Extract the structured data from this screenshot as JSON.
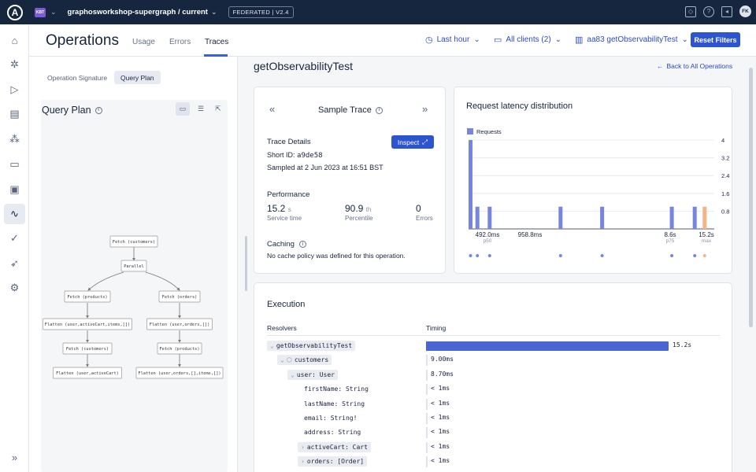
{
  "topbar": {
    "org_badge": "KBT",
    "graph_name": "graphosworkshop-supergraph / current",
    "federation": "FEDERATED | V2.4",
    "avatar_initials": "FK"
  },
  "header": {
    "title": "Operations",
    "tabs": [
      "Usage",
      "Errors",
      "Traces"
    ],
    "active_tab": "Traces",
    "filters": {
      "time": "Last hour",
      "clients": "All clients (2)",
      "operation": "aa83 getObservabilityTest"
    },
    "reset_label": "Reset Filters"
  },
  "left_panel": {
    "tabs": [
      "Operation Signature",
      "Query Plan"
    ],
    "active_tab": "Query Plan",
    "query_plan_title": "Query Plan",
    "nodes": [
      "Fetch (customers)",
      "Parallel",
      "Fetch (products)",
      "Fetch (orders)",
      "Flatten (user,activeCart,items,[])",
      "Flatten (user,orders,[])",
      "Fetch (customers)",
      "Fetch (products)",
      "Flatten (user,activeCart)",
      "Flatten (user,orders,[],items,[])"
    ]
  },
  "main": {
    "operation_name": "getObservabilityTest",
    "back_link": "Back to All Operations",
    "sample_trace": {
      "title": "Sample Trace",
      "details_title": "Trace Details",
      "short_id_label": "Short ID:",
      "short_id": "a9de58",
      "sampled_at": "Sampled at 2 Jun 2023 at 16:51 BST",
      "inspect_label": "Inspect",
      "performance_title": "Performance",
      "service_time": "15.2",
      "service_time_unit": "s",
      "service_time_label": "Service time",
      "percentile": "90.9",
      "percentile_suffix": "th",
      "percentile_label": "Percentile",
      "errors": "0",
      "errors_label": "Errors",
      "caching_title": "Caching",
      "caching_text": "No cache policy was defined for this operation."
    },
    "latency": {
      "title": "Request latency distribution"
    },
    "execution": {
      "title": "Execution",
      "col_resolvers": "Resolvers",
      "col_timing": "Timing",
      "rows": [
        {
          "name": "getObservabilityTest",
          "timing": "15.2s",
          "field": true,
          "chev": "⌄",
          "indent": 0,
          "fraction": 1.0
        },
        {
          "name": "customers",
          "timing": "9.00ms",
          "field": true,
          "chev": "⌄",
          "icon": "⬡",
          "indent": 1,
          "fraction": 0.0
        },
        {
          "name": "user: User",
          "timing": "8.70ms",
          "field": true,
          "chev": "⌄",
          "indent": 2,
          "fraction": 0.0
        },
        {
          "name": "firstName: String",
          "timing": "< 1ms",
          "field": false,
          "indent": 3,
          "fraction": 0.0
        },
        {
          "name": "lastName: String",
          "timing": "< 1ms",
          "field": false,
          "indent": 3,
          "fraction": 0.0
        },
        {
          "name": "email: String!",
          "timing": "< 1ms",
          "field": false,
          "indent": 3,
          "fraction": 0.0
        },
        {
          "name": "address: String",
          "timing": "< 1ms",
          "field": false,
          "indent": 3,
          "fraction": 0.0
        },
        {
          "name": "activeCart: Cart",
          "timing": "< 1ms",
          "field": true,
          "chev": "›",
          "indent": 3,
          "fraction": 0.0
        },
        {
          "name": "orders: [Order]",
          "timing": "< 1ms",
          "field": true,
          "chev": "›",
          "indent": 3,
          "fraction": 0.0
        }
      ]
    }
  },
  "chart_data": {
    "type": "bar",
    "title": "Request latency distribution",
    "legend": [
      "Requests"
    ],
    "legend_position": "top-left",
    "y_ticks": [
      "4",
      "3.2",
      "2.4",
      "1.6",
      "0.8"
    ],
    "ylim": [
      0,
      4
    ],
    "x_ticks": [
      {
        "label": "492.0ms",
        "sub": "p50"
      },
      {
        "label": "958.8ms",
        "sub": ""
      },
      {
        "label": "8.6s",
        "sub": "p75"
      },
      {
        "label": "15.2s",
        "sub": "max"
      }
    ],
    "bars": [
      {
        "pos": 0.0,
        "value": 4,
        "highlight": false
      },
      {
        "pos": 0.029,
        "value": 1,
        "highlight": false
      },
      {
        "pos": 0.081,
        "value": 1,
        "highlight": false
      },
      {
        "pos": 0.381,
        "value": 1,
        "highlight": false
      },
      {
        "pos": 0.557,
        "value": 1,
        "highlight": false
      },
      {
        "pos": 0.852,
        "value": 1,
        "highlight": false
      },
      {
        "pos": 0.949,
        "value": 1,
        "highlight": false
      },
      {
        "pos": 0.991,
        "value": 1,
        "highlight": true
      }
    ],
    "colors": {
      "bar": "#7686e0",
      "highlight": "#f5b488",
      "grid": "#e3e6ec"
    }
  }
}
